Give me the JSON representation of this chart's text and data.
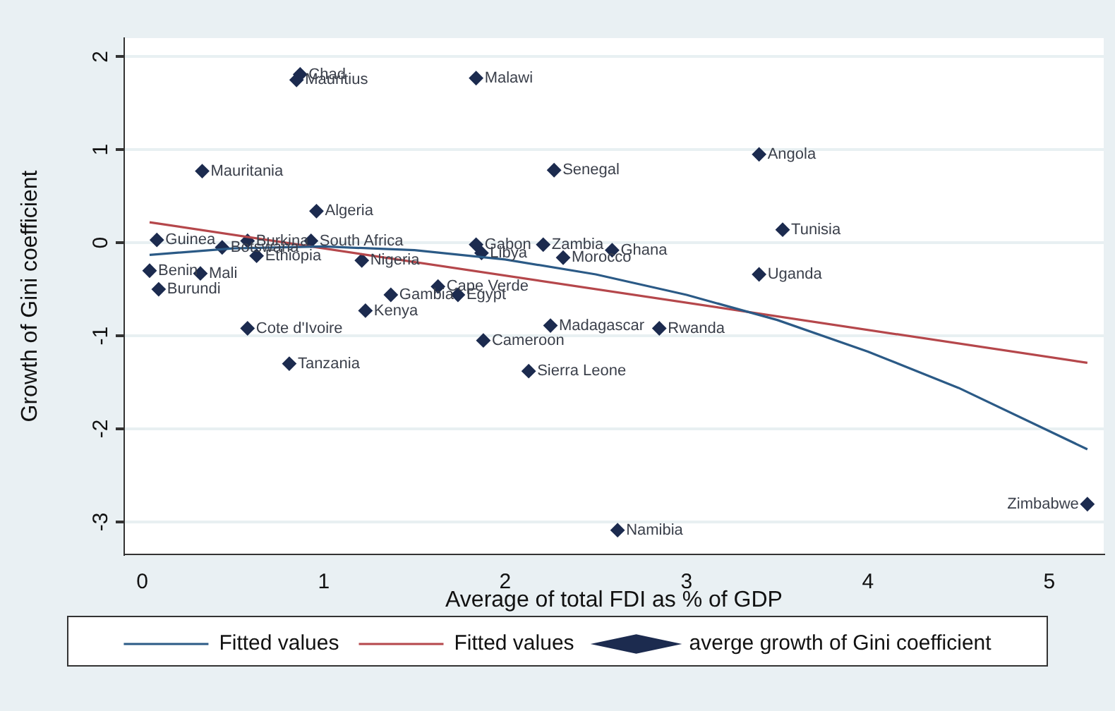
{
  "chart_data": {
    "type": "scatter",
    "xlabel": "Average of total FDI as % of GDP",
    "ylabel": "Growth of Gini coefficient",
    "xlim": [
      -0.1,
      5.3
    ],
    "xticks": [
      0,
      1,
      2,
      3,
      4,
      5
    ],
    "ylim": [
      -3.35,
      2.2
    ],
    "yticks": [
      -3,
      -2,
      -1,
      0,
      1,
      2
    ],
    "grid": "y",
    "legend": "bottom",
    "marker": "diamond",
    "series": [
      {
        "name": "Fitted values",
        "type": "line",
        "marker": "none",
        "color": "#2b5a86",
        "x": [
          0.04,
          0.5,
          1,
          1.5,
          2,
          2.5,
          3,
          3.5,
          4,
          4.5,
          5.21
        ],
        "values": [
          -0.13,
          -0.06,
          -0.04,
          -0.08,
          -0.18,
          -0.34,
          -0.56,
          -0.83,
          -1.17,
          -1.56,
          -2.22
        ]
      },
      {
        "name": "Fitted values",
        "type": "line",
        "marker": "none",
        "color": "#b5474b",
        "x": [
          0.04,
          5.21
        ],
        "values": [
          0.22,
          -1.29
        ]
      },
      {
        "name": "averge growth of Gini coefficient",
        "type": "scatter",
        "color": "#1c2b4f",
        "x": [
          0.87,
          0.85,
          1.84,
          0.33,
          0.96,
          0.08,
          0.44,
          0.58,
          0.93,
          0.63,
          0.04,
          0.32,
          0.09,
          1.21,
          1.37,
          1.63,
          1.74,
          1.23,
          0.58,
          0.81,
          1.84,
          1.87,
          2.21,
          2.59,
          2.32,
          2.27,
          3.4,
          3.53,
          3.4,
          2.25,
          2.85,
          1.88,
          2.13,
          2.62,
          5.21
        ],
        "values": [
          1.81,
          1.75,
          1.77,
          0.77,
          0.34,
          0.03,
          -0.05,
          0.02,
          0.02,
          -0.14,
          -0.3,
          -0.33,
          -0.5,
          -0.19,
          -0.56,
          -0.47,
          -0.56,
          -0.73,
          -0.92,
          -1.3,
          -0.02,
          -0.11,
          -0.02,
          -0.08,
          -0.16,
          0.78,
          0.95,
          0.14,
          -0.34,
          -0.89,
          -0.92,
          -1.05,
          -1.38,
          -3.09,
          -2.81
        ]
      }
    ],
    "annotations": [
      {
        "text": "Chad",
        "x": 0.87,
        "y": 1.81
      },
      {
        "text": "Mauritius",
        "x": 0.85,
        "y": 1.75
      },
      {
        "text": "Malawi",
        "x": 1.84,
        "y": 1.77
      },
      {
        "text": "Mauritania",
        "x": 0.33,
        "y": 0.77
      },
      {
        "text": "Algeria",
        "x": 0.96,
        "y": 0.34
      },
      {
        "text": "Guinea",
        "x": 0.08,
        "y": 0.03
      },
      {
        "text": "Botswana",
        "x": 0.44,
        "y": -0.05
      },
      {
        "text": "Burkina",
        "x": 0.58,
        "y": 0.02
      },
      {
        "text": "South Africa",
        "x": 0.93,
        "y": 0.02
      },
      {
        "text": "Ethiopia",
        "x": 0.63,
        "y": -0.14
      },
      {
        "text": "Benin",
        "x": 0.04,
        "y": -0.3
      },
      {
        "text": "Mali",
        "x": 0.32,
        "y": -0.33
      },
      {
        "text": "Burundi",
        "x": 0.09,
        "y": -0.5
      },
      {
        "text": "Nigeria",
        "x": 1.21,
        "y": -0.19
      },
      {
        "text": "Gambia",
        "x": 1.37,
        "y": -0.56
      },
      {
        "text": "Cape Verde",
        "x": 1.63,
        "y": -0.47
      },
      {
        "text": "Egypt",
        "x": 1.74,
        "y": -0.56
      },
      {
        "text": "Kenya",
        "x": 1.23,
        "y": -0.73
      },
      {
        "text": "Cote d'Ivoire",
        "x": 0.58,
        "y": -0.92
      },
      {
        "text": "Tanzania",
        "x": 0.81,
        "y": -1.3
      },
      {
        "text": "Gabon",
        "x": 1.84,
        "y": -0.02
      },
      {
        "text": "Libya",
        "x": 1.87,
        "y": -0.11
      },
      {
        "text": "Zambia",
        "x": 2.21,
        "y": -0.02
      },
      {
        "text": "Ghana",
        "x": 2.59,
        "y": -0.08
      },
      {
        "text": "Morocco",
        "x": 2.32,
        "y": -0.16
      },
      {
        "text": "Senegal",
        "x": 2.27,
        "y": 0.78
      },
      {
        "text": "Angola",
        "x": 3.4,
        "y": 0.95
      },
      {
        "text": "Tunisia",
        "x": 3.53,
        "y": 0.14
      },
      {
        "text": "Uganda",
        "x": 3.4,
        "y": -0.34
      },
      {
        "text": "Madagascar",
        "x": 2.25,
        "y": -0.89
      },
      {
        "text": "Rwanda",
        "x": 2.85,
        "y": -0.92
      },
      {
        "text": "Cameroon",
        "x": 1.88,
        "y": -1.05
      },
      {
        "text": "Sierra Leone",
        "x": 2.13,
        "y": -1.38
      },
      {
        "text": "Namibia",
        "x": 2.62,
        "y": -3.09
      },
      {
        "text": "Zimbabwe",
        "x": 5.21,
        "y": -2.81
      }
    ]
  }
}
